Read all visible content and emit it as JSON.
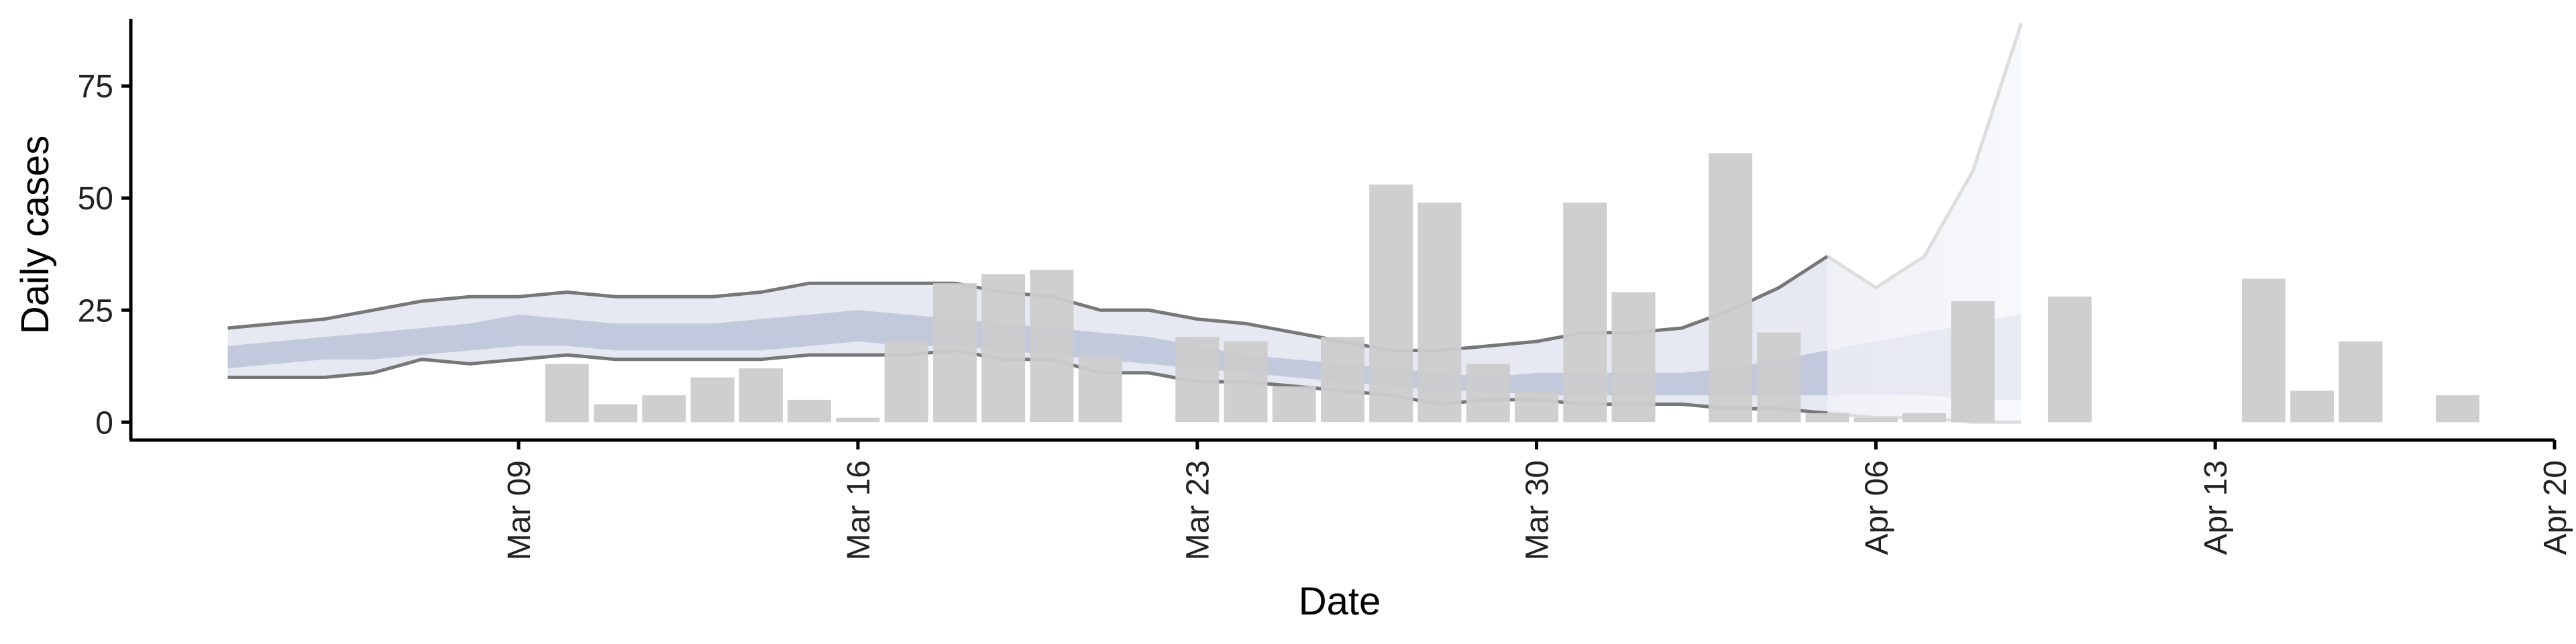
{
  "chart_data": {
    "type": "bar",
    "title": "",
    "xlabel": "Date",
    "ylabel": "Daily cases",
    "ylim": [
      -4,
      90
    ],
    "xlim": [
      "2020-03-01",
      "2020-04-20"
    ],
    "y_ticks": [
      0,
      25,
      50,
      75
    ],
    "y_tick_labels": [
      "0",
      "25",
      "50",
      "75"
    ],
    "x_ticks": [
      "2020-03-09",
      "2020-03-16",
      "2020-03-23",
      "2020-03-30",
      "2020-04-06",
      "2020-04-13",
      "2020-04-20"
    ],
    "x_tick_labels": [
      "Mar 09",
      "Mar 16",
      "Mar 23",
      "Mar 30",
      "Apr 06",
      "Apr 13",
      "Apr 20"
    ],
    "grid": false,
    "legend": "none",
    "colors": {
      "bars": "#cccccc",
      "outer_band": "#e6e8f2",
      "inner_band": "#c3c9dc",
      "bound_lines": "#777777",
      "forecast_band": "#eef0f6",
      "forecast_lines": "#dddddd",
      "axis": "#000000"
    },
    "bars": [
      {
        "date": "2020-03-10",
        "value": 13
      },
      {
        "date": "2020-03-11",
        "value": 4
      },
      {
        "date": "2020-03-12",
        "value": 6
      },
      {
        "date": "2020-03-13",
        "value": 10
      },
      {
        "date": "2020-03-14",
        "value": 12
      },
      {
        "date": "2020-03-15",
        "value": 5
      },
      {
        "date": "2020-03-16",
        "value": 1
      },
      {
        "date": "2020-03-17",
        "value": 18
      },
      {
        "date": "2020-03-18",
        "value": 31
      },
      {
        "date": "2020-03-19",
        "value": 33
      },
      {
        "date": "2020-03-20",
        "value": 34
      },
      {
        "date": "2020-03-21",
        "value": 15
      },
      {
        "date": "2020-03-23",
        "value": 19
      },
      {
        "date": "2020-03-24",
        "value": 18
      },
      {
        "date": "2020-03-25",
        "value": 8
      },
      {
        "date": "2020-03-26",
        "value": 19
      },
      {
        "date": "2020-03-27",
        "value": 53
      },
      {
        "date": "2020-03-28",
        "value": 49
      },
      {
        "date": "2020-03-29",
        "value": 13
      },
      {
        "date": "2020-03-30",
        "value": 7
      },
      {
        "date": "2020-03-31",
        "value": 49
      },
      {
        "date": "2020-04-01",
        "value": 29
      },
      {
        "date": "2020-04-03",
        "value": 60
      },
      {
        "date": "2020-04-04",
        "value": 20
      },
      {
        "date": "2020-04-05",
        "value": 2
      },
      {
        "date": "2020-04-06",
        "value": 1
      },
      {
        "date": "2020-04-07",
        "value": 2
      },
      {
        "date": "2020-04-08",
        "value": 27
      },
      {
        "date": "2020-04-10",
        "value": 28
      },
      {
        "date": "2020-04-14",
        "value": 32
      },
      {
        "date": "2020-04-15",
        "value": 7
      },
      {
        "date": "2020-04-16",
        "value": 18
      },
      {
        "date": "2020-04-18",
        "value": 6
      }
    ],
    "estimate": {
      "dates": [
        "2020-03-03",
        "2020-03-04",
        "2020-03-05",
        "2020-03-06",
        "2020-03-07",
        "2020-03-08",
        "2020-03-09",
        "2020-03-10",
        "2020-03-11",
        "2020-03-12",
        "2020-03-13",
        "2020-03-14",
        "2020-03-15",
        "2020-03-16",
        "2020-03-17",
        "2020-03-18",
        "2020-03-19",
        "2020-03-20",
        "2020-03-21",
        "2020-03-22",
        "2020-03-23",
        "2020-03-24",
        "2020-03-25",
        "2020-03-26",
        "2020-03-27",
        "2020-03-28",
        "2020-03-29",
        "2020-03-30",
        "2020-03-31",
        "2020-04-01",
        "2020-04-02",
        "2020-04-03",
        "2020-04-04",
        "2020-04-05"
      ],
      "upper_90": [
        21,
        22,
        23,
        25,
        27,
        28,
        28,
        29,
        28,
        28,
        28,
        29,
        31,
        31,
        31,
        31,
        29,
        28,
        25,
        25,
        23,
        22,
        20,
        18,
        16,
        16,
        17,
        18,
        20,
        20,
        21,
        25,
        30,
        37
      ],
      "upper_50": [
        17,
        18,
        19,
        20,
        21,
        22,
        24,
        23,
        22,
        22,
        22,
        23,
        24,
        25,
        24,
        23,
        22,
        21,
        20,
        19,
        17,
        15,
        14,
        13,
        12,
        11,
        10,
        11,
        11,
        11,
        11,
        12,
        14,
        16
      ],
      "lower_50": [
        12,
        13,
        14,
        14,
        15,
        16,
        17,
        17,
        16,
        16,
        16,
        16,
        17,
        18,
        17,
        17,
        16,
        15,
        14,
        13,
        12,
        11,
        10,
        9,
        8,
        7,
        7,
        6,
        6,
        6,
        6,
        6,
        6,
        6
      ],
      "lower_90": [
        10,
        10,
        10,
        11,
        14,
        13,
        14,
        15,
        14,
        14,
        14,
        14,
        15,
        15,
        15,
        16,
        14,
        14,
        11,
        11,
        9,
        9,
        8,
        7,
        6,
        4,
        5,
        5,
        4,
        4,
        4,
        3,
        3,
        2
      ]
    },
    "forecast": {
      "dates": [
        "2020-04-05",
        "2020-04-06",
        "2020-04-07",
        "2020-04-08",
        "2020-04-09"
      ],
      "upper_90": [
        37,
        30,
        37,
        56,
        89
      ],
      "upper_50": [
        16,
        18,
        20,
        22,
        24
      ],
      "lower_50": [
        6,
        6,
        6,
        5,
        5
      ],
      "lower_90": [
        2,
        1,
        1,
        0,
        0
      ]
    }
  }
}
